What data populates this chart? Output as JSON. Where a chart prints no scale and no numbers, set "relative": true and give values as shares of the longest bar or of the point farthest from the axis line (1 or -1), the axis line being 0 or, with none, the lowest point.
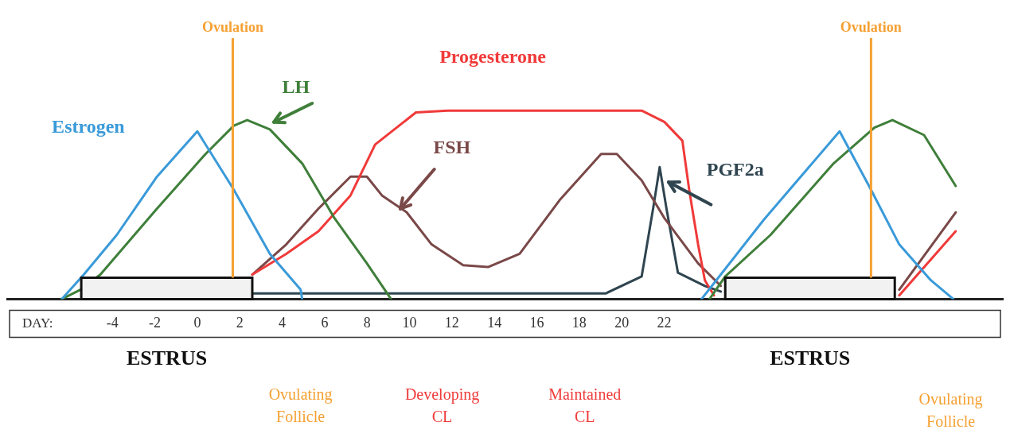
{
  "chart_data": {
    "type": "line",
    "relative": true,
    "xlabel": "DAY:",
    "xlim": [
      -9,
      38
    ],
    "xticks": [
      -4,
      -2,
      0,
      2,
      4,
      6,
      8,
      10,
      12,
      14,
      16,
      18,
      20,
      22
    ],
    "series": [
      {
        "name": "Estrogen",
        "color": "#3a9ad9",
        "x": [
          -6.39,
          -5.35,
          -3.8,
          -1.9,
          0,
          1.72,
          3.42,
          4.87,
          4.94,
          14.45,
          23.76,
          26.69,
          30.27,
          31.75,
          33.08,
          34.57,
          35.63
        ],
        "values": [
          0,
          0.13,
          0.34,
          0.65,
          0.89,
          0.58,
          0.24,
          0.05,
          0,
          null,
          0,
          0.42,
          0.89,
          0.58,
          0.29,
          0.1,
          0
        ]
      },
      {
        "name": "LH",
        "color": "#3f7f3a",
        "x": [
          -6.39,
          -5.51,
          -4.57,
          -1.9,
          0.39,
          1.72,
          2.35,
          3.42,
          4.94,
          6.46,
          7.99,
          9.13,
          16.58,
          24.14,
          24.88,
          27.01,
          29.99,
          31.91,
          32.76,
          34.25,
          35.74
        ],
        "values": [
          0,
          0.05,
          0.13,
          0.48,
          0.77,
          0.92,
          0.95,
          0.9,
          0.72,
          0.43,
          0.19,
          0,
          null,
          0,
          0.12,
          0.34,
          0.72,
          0.91,
          0.95,
          0.87,
          0.6
        ]
      },
      {
        "name": "Progesterone",
        "color": "#f03a3a",
        "x": [
          2.59,
          4.19,
          5.71,
          7.22,
          8.38,
          10.3,
          11.79,
          17.11,
          20.94,
          22.01,
          22.86,
          23.18,
          23.6,
          23.92,
          24.35,
          29.35,
          33.08,
          35.74
        ],
        "values": [
          0.13,
          0.24,
          0.36,
          0.55,
          0.82,
          0.99,
          1,
          1,
          1,
          0.94,
          0.84,
          0.58,
          0.29,
          0.1,
          0.02,
          null,
          0.02,
          0.36
        ]
      },
      {
        "name": "FSH",
        "color": "#7a4848",
        "x": [
          2.59,
          4.19,
          5.71,
          7.22,
          7.99,
          8.7,
          9.87,
          11.04,
          12.53,
          13.7,
          15.19,
          17.11,
          19.03,
          19.77,
          20.94,
          22.01,
          23.6,
          24.67,
          29.35,
          33.08,
          35.74
        ],
        "values": [
          0.13,
          0.29,
          0.48,
          0.65,
          0.65,
          0.55,
          0.46,
          0.29,
          0.18,
          0.17,
          0.24,
          0.53,
          0.77,
          0.77,
          0.63,
          0.43,
          0.19,
          0.07,
          null,
          0.05,
          0.46
        ]
      },
      {
        "name": "PGF2a",
        "color": "#2f4550",
        "x": [
          2.59,
          19.24,
          20.94,
          21.48,
          21.79,
          22.11,
          22.65,
          23.92,
          24.67
        ],
        "values": [
          0.03,
          0.03,
          0.12,
          0.48,
          0.7,
          0.48,
          0.14,
          0.07,
          0.04
        ]
      }
    ],
    "ref_lines": [
      {
        "axis": "x",
        "value": 1.67,
        "label": "Ovulation",
        "color": "#f5a032"
      },
      {
        "axis": "x",
        "value": 31.75,
        "label": "Ovulation",
        "color": "#f5a032"
      }
    ],
    "bands": [
      {
        "axis": "x",
        "from": -5.47,
        "to": 2.59,
        "label": "ESTRUS",
        "color": "#f2f2f2"
      },
      {
        "axis": "x",
        "from": 24.88,
        "to": 32.87,
        "label": "ESTRUS",
        "color": "#f2f2f2"
      }
    ],
    "annotations": [
      "Ovulating\nFollicle",
      "Developing\nCL",
      "Maintained\nCL",
      "Ovulating\nFollicle"
    ],
    "grid": false,
    "legend": false
  }
}
